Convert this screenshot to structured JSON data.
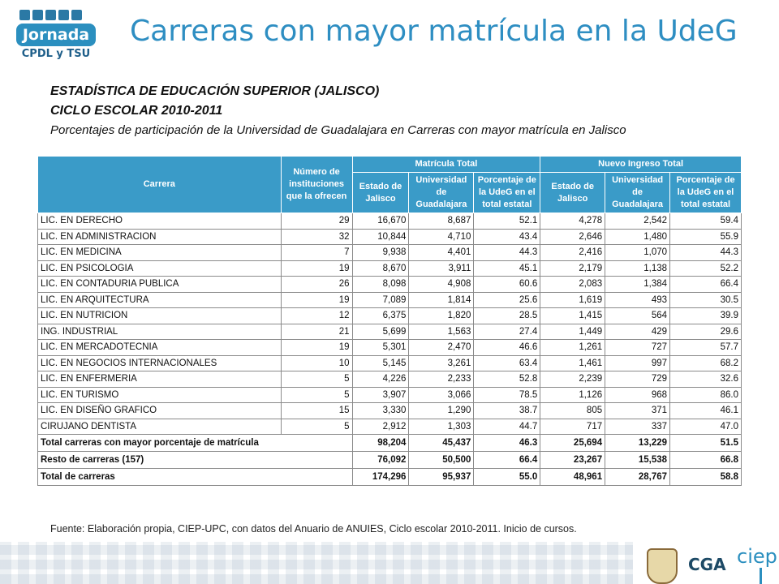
{
  "logo": {
    "line1": "Jornada",
    "line2": "CPDL y TSU"
  },
  "title": "Carreras con mayor matrícula en la UdeG",
  "heading": {
    "line1": "ESTADÍSTICA DE EDUCACIÓN SUPERIOR (JALISCO)",
    "line2": "CICLO ESCOLAR 2010-2011",
    "line3": "Porcentajes de participación de la Universidad de Guadalajara en Carreras con mayor matrícula en Jalisco"
  },
  "table": {
    "headers": {
      "carrera": "Carrera",
      "instituciones": "Número de instituciones que la ofrecen",
      "matricula_total": "Matrícula Total",
      "nuevo_ingreso_total": "Nuevo Ingreso Total",
      "estado": "Estado de Jalisco",
      "udeg": "Universidad de Guadalajara",
      "porcentaje": "Porcentaje de la UdeG en el total estatal"
    },
    "rows": [
      [
        "LIC. EN DERECHO",
        "29",
        "16,670",
        "8,687",
        "52.1",
        "4,278",
        "2,542",
        "59.4"
      ],
      [
        "LIC. EN ADMINISTRACION",
        "32",
        "10,844",
        "4,710",
        "43.4",
        "2,646",
        "1,480",
        "55.9"
      ],
      [
        "LIC. EN MEDICINA",
        "7",
        "9,938",
        "4,401",
        "44.3",
        "2,416",
        "1,070",
        "44.3"
      ],
      [
        "LIC. EN PSICOLOGIA",
        "19",
        "8,670",
        "3,911",
        "45.1",
        "2,179",
        "1,138",
        "52.2"
      ],
      [
        "LIC. EN CONTADURIA PUBLICA",
        "26",
        "8,098",
        "4,908",
        "60.6",
        "2,083",
        "1,384",
        "66.4"
      ],
      [
        "LIC. EN ARQUITECTURA",
        "19",
        "7,089",
        "1,814",
        "25.6",
        "1,619",
        "493",
        "30.5"
      ],
      [
        "LIC. EN NUTRICION",
        "12",
        "6,375",
        "1,820",
        "28.5",
        "1,415",
        "564",
        "39.9"
      ],
      [
        "ING. INDUSTRIAL",
        "21",
        "5,699",
        "1,563",
        "27.4",
        "1,449",
        "429",
        "29.6"
      ],
      [
        "LIC. EN MERCADOTECNIA",
        "19",
        "5,301",
        "2,470",
        "46.6",
        "1,261",
        "727",
        "57.7"
      ],
      [
        "LIC. EN NEGOCIOS INTERNACIONALES",
        "10",
        "5,145",
        "3,261",
        "63.4",
        "1,461",
        "997",
        "68.2"
      ],
      [
        "LIC. EN ENFERMERIA",
        "5",
        "4,226",
        "2,233",
        "52.8",
        "2,239",
        "729",
        "32.6"
      ],
      [
        "LIC. EN TURISMO",
        "5",
        "3,907",
        "3,066",
        "78.5",
        "1,126",
        "968",
        "86.0"
      ],
      [
        "LIC. EN DISEÑO GRAFICO",
        "15",
        "3,330",
        "1,290",
        "38.7",
        "805",
        "371",
        "46.1"
      ],
      [
        "CIRUJANO DENTISTA",
        "5",
        "2,912",
        "1,303",
        "44.7",
        "717",
        "337",
        "47.0"
      ]
    ],
    "totals": [
      [
        "Total carreras con mayor porcentaje de matrícula",
        "98,204",
        "45,437",
        "46.3",
        "25,694",
        "13,229",
        "51.5"
      ],
      [
        "Resto de carreras (157)",
        "76,092",
        "50,500",
        "66.4",
        "23,267",
        "15,538",
        "66.8"
      ],
      [
        "Total de carreras",
        "174,296",
        "95,937",
        "55.0",
        "48,961",
        "28,767",
        "58.8"
      ]
    ]
  },
  "source": "Fuente: Elaboración propia, CIEP-UPC,  con datos del Anuario de ANUIES, Ciclo escolar 2010-2011.  Inicio de cursos.",
  "footer": {
    "cga": "CGA",
    "ciep": "ciep"
  }
}
